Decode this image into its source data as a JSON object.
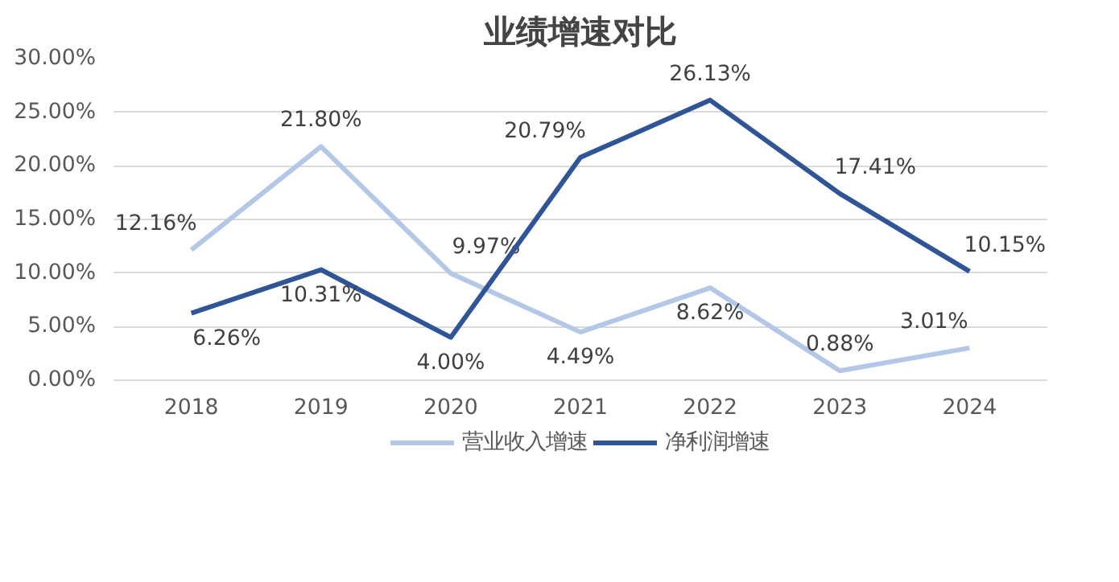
{
  "chart_data": {
    "type": "line",
    "title": "业绩增速对比",
    "categories": [
      "2018",
      "2019",
      "2020",
      "2021",
      "2022",
      "2023",
      "2024"
    ],
    "series": [
      {
        "name": "营业收入增速",
        "color": "#b4c7e7",
        "values": [
          12.16,
          21.8,
          9.97,
          4.49,
          8.62,
          0.88,
          3.01
        ],
        "value_labels": [
          "12.16%",
          "21.80%",
          "9.97%",
          "4.49%",
          "8.62%",
          "0.88%",
          "3.01%"
        ]
      },
      {
        "name": "净利润增速",
        "color": "#2f5597",
        "values": [
          6.26,
          10.31,
          4.0,
          20.79,
          26.13,
          17.41,
          10.15
        ],
        "value_labels": [
          "6.26%",
          "10.31%",
          "4.00%",
          "20.79%",
          "26.13%",
          "17.41%",
          "10.15%"
        ]
      }
    ],
    "ylim": [
      0,
      30
    ],
    "yticks": [
      {
        "value": 0,
        "label": "0.00%"
      },
      {
        "value": 5,
        "label": "5.00%"
      },
      {
        "value": 10,
        "label": "10.00%"
      },
      {
        "value": 15,
        "label": "15.00%"
      },
      {
        "value": 20,
        "label": "20.00%"
      },
      {
        "value": 25,
        "label": "25.00%"
      },
      {
        "value": 30,
        "label": "30.00%"
      }
    ],
    "grid": "y",
    "legend": "bottom",
    "marker": "none",
    "line_style": "solid"
  }
}
